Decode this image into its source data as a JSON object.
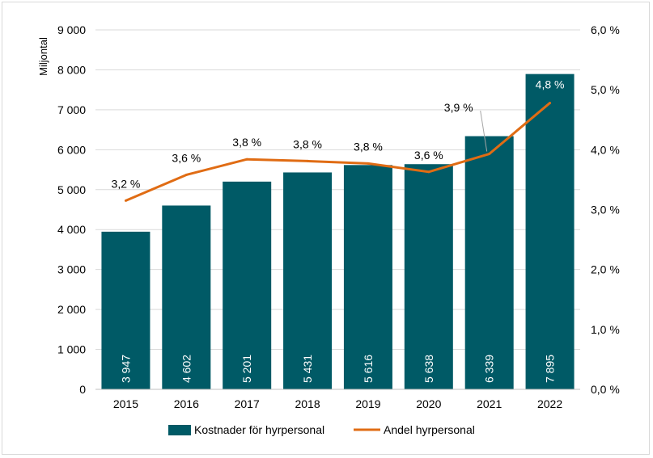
{
  "chart_data": {
    "type": "bar",
    "title": "",
    "xlabel": "",
    "ylabel": "Miljontal",
    "categories": [
      "2015",
      "2016",
      "2017",
      "2018",
      "2019",
      "2020",
      "2021",
      "2022"
    ],
    "series": [
      {
        "name": "Kostnader för hyrpersonal",
        "type": "bar",
        "axis": "left",
        "color": "#005a66",
        "values": [
          3947,
          4602,
          5201,
          5431,
          5616,
          5638,
          6339,
          7895
        ],
        "labels": [
          "3 947",
          "4 602",
          "5 201",
          "5 431",
          "5 616",
          "5 638",
          "6 339",
          "7 895"
        ]
      },
      {
        "name": "Andel hyrpersonal",
        "type": "line",
        "axis": "right",
        "color": "#e06c14",
        "values": [
          3.15,
          3.58,
          3.84,
          3.81,
          3.77,
          3.63,
          3.93,
          4.78
        ],
        "labels": [
          "3,2 %",
          "3,6 %",
          "3,8 %",
          "3,8 %",
          "3,8 %",
          "3,6 %",
          "3,9 %",
          "4,8 %"
        ]
      }
    ],
    "ylim": [
      0,
      9000
    ],
    "y2lim": [
      0,
      6.0
    ],
    "yticks": [
      "0",
      "1 000",
      "2 000",
      "3 000",
      "4 000",
      "5 000",
      "6 000",
      "7 000",
      "8 000",
      "9 000"
    ],
    "y2ticks": [
      "0,0 %",
      "1,0 %",
      "2,0 %",
      "3,0 %",
      "4,0 %",
      "5,0 %",
      "6,0 %"
    ],
    "grid": true,
    "legend": "bottom"
  }
}
